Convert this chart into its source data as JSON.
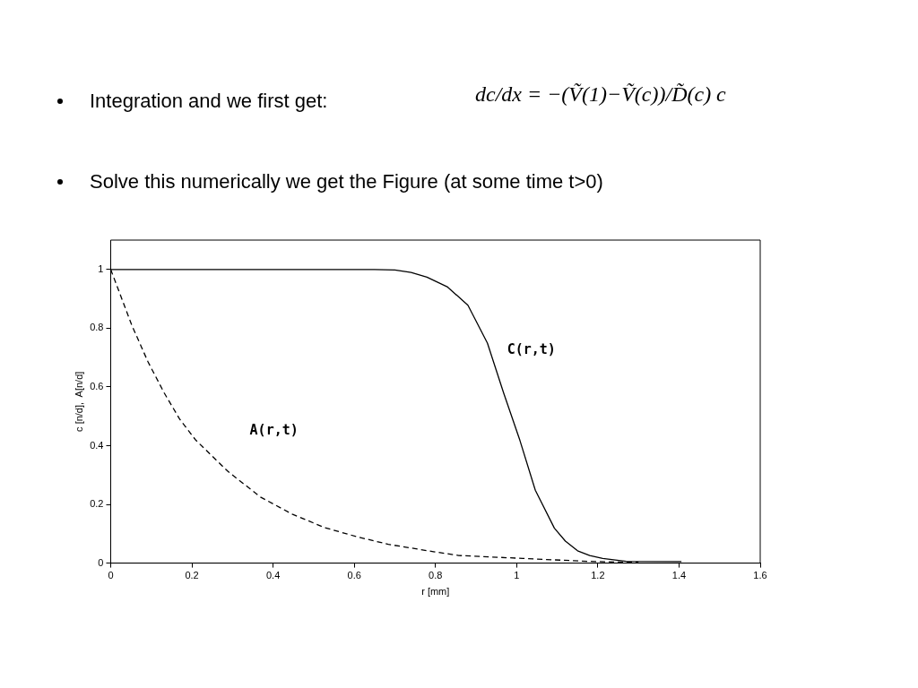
{
  "chart_data": {
    "type": "line",
    "xlabel": "r [mm]",
    "ylabel": "c [n/d],  A[n/d]",
    "xlim": [
      0,
      1.6
    ],
    "ylim": [
      0,
      1.1
    ],
    "xticks": [
      0,
      0.2,
      0.4,
      0.6,
      0.8,
      1,
      1.2,
      1.4,
      1.6
    ],
    "yticks": [
      0,
      0.2,
      0.4,
      0.6,
      0.8,
      1
    ],
    "grid": false,
    "legend": false,
    "marker": "none",
    "series": [
      {
        "name": "C(r,t)",
        "color": "#000000",
        "line_style": "solid",
        "x": [
          0,
          0.3,
          0.65,
          0.7,
          0.74,
          0.779,
          0.83,
          0.88,
          0.928,
          0.968,
          1.008,
          1.046,
          1.093,
          1.12,
          1.15,
          1.18,
          1.212,
          1.27,
          1.406
        ],
        "values": [
          1,
          1,
          1,
          0.998,
          0.99,
          0.974,
          0.94,
          0.878,
          0.749,
          0.579,
          0.418,
          0.248,
          0.119,
          0.075,
          0.042,
          0.026,
          0.016,
          0.006,
          0.005
        ]
      },
      {
        "name": "A(r,t)",
        "color": "#000000",
        "line_style": "dashed",
        "x": [
          0,
          0.052,
          0.092,
          0.132,
          0.17,
          0.21,
          0.289,
          0.369,
          0.447,
          0.525,
          0.606,
          0.684,
          0.795,
          0.857,
          1.015,
          1.174,
          1.27,
          1.3
        ],
        "values": [
          1,
          0.81,
          0.685,
          0.579,
          0.49,
          0.418,
          0.312,
          0.225,
          0.167,
          0.122,
          0.09,
          0.064,
          0.039,
          0.026,
          0.016,
          0.006,
          0.003,
          0.003
        ]
      }
    ],
    "annotations": [
      "Integration and we first get:",
      "dc/dx = −(Ṽ(1)−Ṽ(c))/D̃(c) c",
      "Solve this numerically we get the Figure (at some time t>0)"
    ]
  }
}
